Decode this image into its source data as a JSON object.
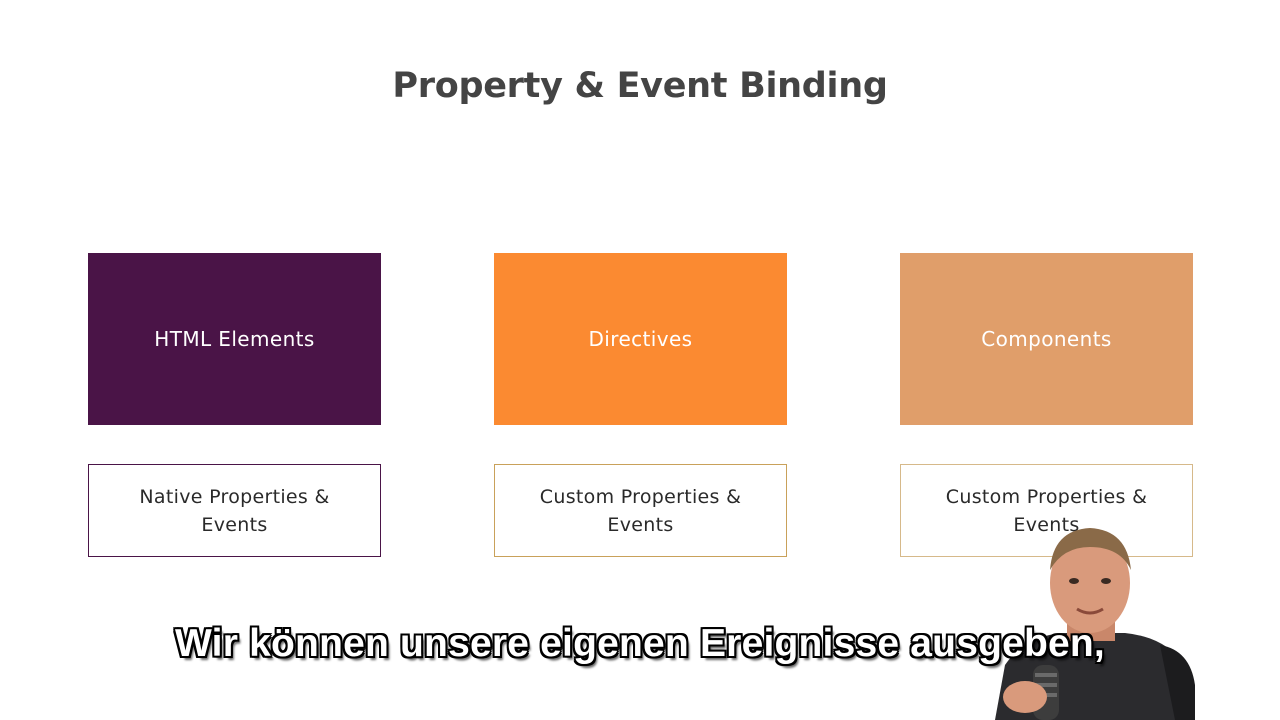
{
  "slide": {
    "title": "Property & Event Binding"
  },
  "categories": [
    {
      "label": "HTML Elements",
      "color": "#4a1447",
      "description": "Native Properties & Events"
    },
    {
      "label": "Directives",
      "color": "#fb8a31",
      "description": "Custom Properties & Events"
    },
    {
      "label": "Components",
      "color": "#e09e6a",
      "description": "Custom Properties & Events"
    }
  ],
  "subtitle": {
    "text": "Wir können unsere eigenen Ereignisse ausgeben,"
  }
}
